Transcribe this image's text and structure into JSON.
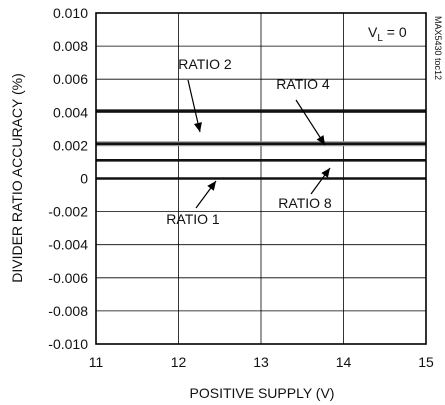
{
  "chart_data": {
    "type": "line",
    "title": "",
    "xlabel": "POSITIVE SUPPLY (V)",
    "ylabel": "DIVIDER RATIO ACCURACY (%)",
    "xlim": [
      11,
      15
    ],
    "ylim": [
      -0.01,
      0.01
    ],
    "x_ticks": [
      "11",
      "12",
      "13",
      "14",
      "15"
    ],
    "y_ticks": [
      "0.010",
      "0.008",
      "0.006",
      "0.004",
      "0.002",
      "0",
      "-0.002",
      "-0.004",
      "-0.006",
      "-0.008",
      "-0.010"
    ],
    "grid": true,
    "series": [
      {
        "name": "RATIO 1",
        "x": [
          11,
          15
        ],
        "y": [
          0.0,
          0.0
        ]
      },
      {
        "name": "RATIO 2",
        "x": [
          11,
          15
        ],
        "y": [
          0.0041,
          0.0041
        ]
      },
      {
        "name": "RATIO 4",
        "x": [
          11,
          15
        ],
        "y": [
          0.0021,
          0.0021
        ]
      },
      {
        "name": "RATIO 8",
        "x": [
          11,
          15
        ],
        "y": [
          0.0011,
          0.0011
        ]
      }
    ],
    "condition": {
      "main": "V",
      "sub": "L",
      "rest": " = 0"
    },
    "watermark": "MAX5430 toc12"
  },
  "colors": {
    "series": "#111111",
    "grid": "#000000",
    "series_secondary": "#999999"
  }
}
